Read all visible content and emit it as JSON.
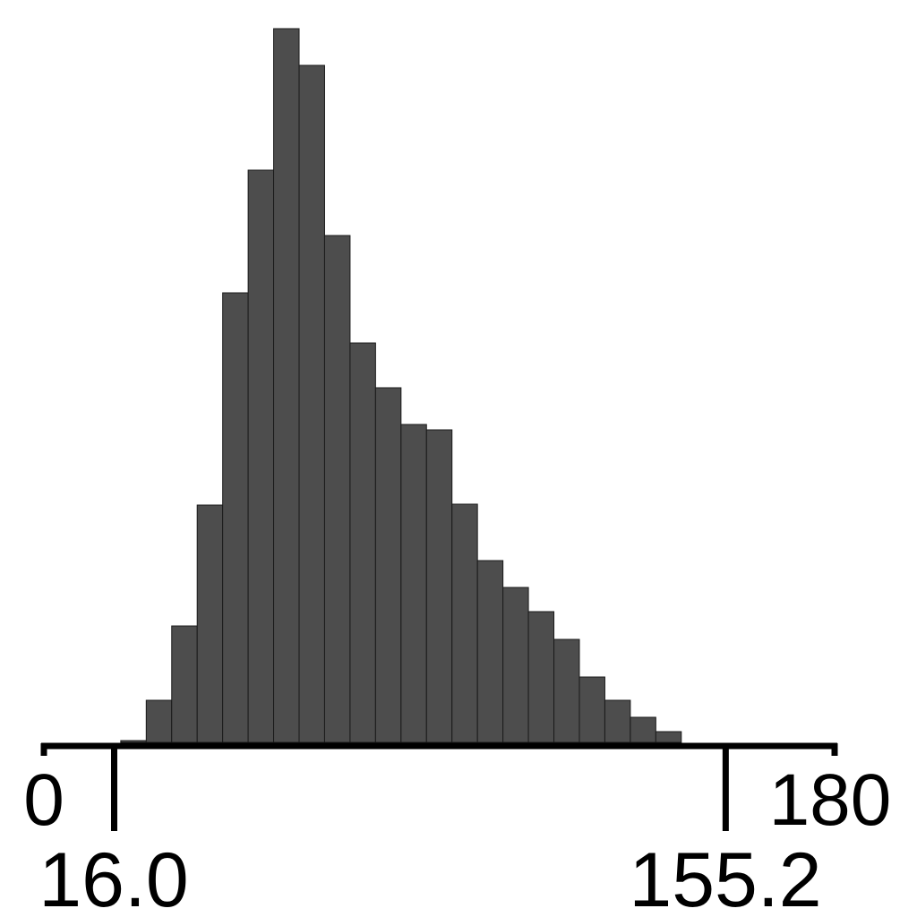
{
  "chart_data": {
    "type": "bar",
    "subtype": "histogram",
    "title": "",
    "xlabel": "",
    "ylabel": "",
    "xlim": [
      0,
      180
    ],
    "ylim": [
      0,
      800
    ],
    "bin_start": 17.5,
    "bin_width": 5.8,
    "values": [
      2,
      47,
      130,
      265,
      502,
      639,
      797,
      756,
      566,
      446,
      396,
      355,
      349,
      266,
      203,
      173,
      146,
      115,
      73,
      47,
      28,
      12
    ],
    "x_axis_ticks": [
      {
        "value": 0,
        "label": "0"
      },
      {
        "value": 180,
        "label": "180"
      }
    ],
    "range_markers": [
      {
        "value": 16.0,
        "label": "16.0"
      },
      {
        "value": 155.2,
        "label": "155.2"
      }
    ],
    "grid": false,
    "y_axis_shown": false,
    "colors": {
      "bar_fill": "#4d4d4d",
      "bar_stroke": "#1a1a1a",
      "axis": "#000000"
    }
  }
}
